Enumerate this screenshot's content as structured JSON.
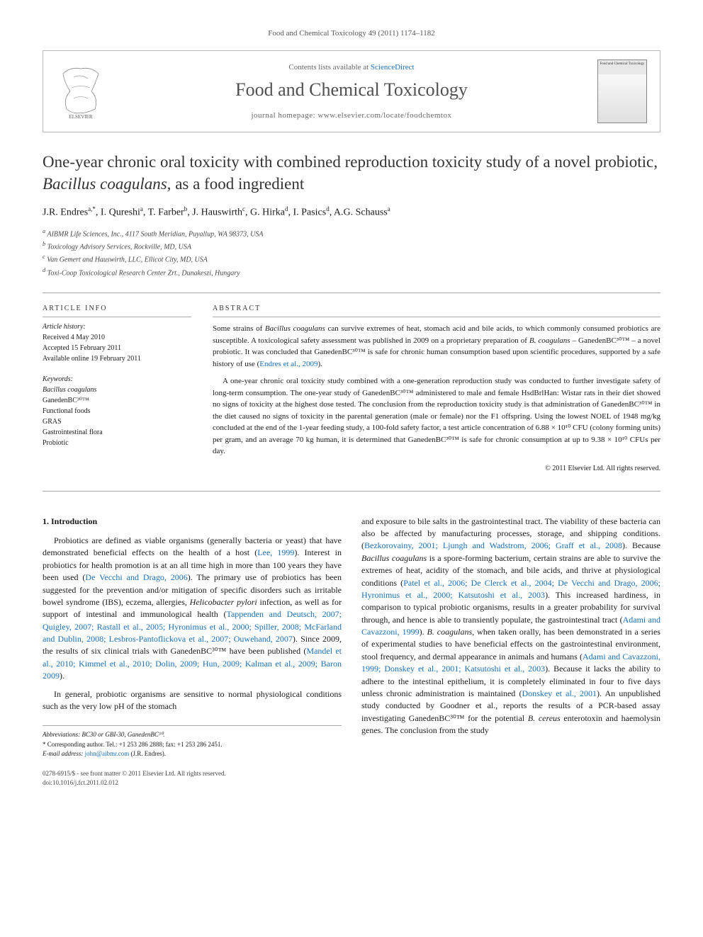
{
  "topline": "Food and Chemical Toxicology 49 (2011) 1174–1182",
  "header": {
    "contents": "Contents lists available at",
    "scidirect": "ScienceDirect",
    "journal": "Food and Chemical Toxicology",
    "homepage": "journal homepage: www.elsevier.com/locate/foodchemtox",
    "elsevier_label": "ELSEVIER",
    "cover_label": "Food and Chemical Toxicology"
  },
  "title_pre": "One-year chronic oral toxicity with combined reproduction toxicity study of a novel probiotic, ",
  "title_ital": "Bacillus coagulans,",
  "title_post": " as a food ingredient",
  "authors_html": "J.R. Endres<sup>a,*</sup>, I. Qureshi<sup>a</sup>, T. Farber<sup>b</sup>, J. Hauswirth<sup>c</sup>, G. Hirka<sup>d</sup>, I. Pasics<sup>d</sup>, A.G. Schauss<sup>a</sup>",
  "affiliations": [
    "a AIBMR Life Sciences, Inc., 4117 South Meridian, Puyallup, WA 98373, USA",
    "b Toxicology Advisory Services, Rockville, MD, USA",
    "c Van Gemert and Hauswirth, LLC, Ellicot City, MD, USA",
    "d Toxi-Coop Toxicological Research Center Zrt., Dunakeszi, Hungary"
  ],
  "article_info": {
    "head": "ARTICLE INFO",
    "history_head": "Article history:",
    "received": "Received 4 May 2010",
    "accepted": "Accepted 15 February 2011",
    "online": "Available online 19 February 2011",
    "keywords_head": "Keywords:",
    "keywords": [
      "Bacillus coagulans",
      "GanedenBC³⁰™",
      "Functional foods",
      "GRAS",
      "Gastrointestinal flora",
      "Probiotic"
    ]
  },
  "abstract": {
    "head": "ABSTRACT",
    "p1": "Some strains of Bacillus coagulans can survive extremes of heat, stomach acid and bile acids, to which commonly consumed probiotics are susceptible. A toxicological safety assessment was published in 2009 on a proprietary preparation of B. coagulans – GanedenBC³⁰™ – a novel probiotic. It was concluded that GanedenBC³⁰™ is safe for chronic human consumption based upon scientific procedures, supported by a safe history of use (Endres et al., 2009).",
    "p2": "A one-year chronic oral toxicity study combined with a one-generation reproduction study was conducted to further investigate safety of long-term consumption. The one-year study of GanedenBC³⁰™ administered to male and female HsdBrlHan: Wistar rats in their diet showed no signs of toxicity at the highest dose tested. The conclusion from the reproduction toxicity study is that administration of GanedenBC³⁰™ in the diet caused no signs of toxicity in the parental generation (male or female) nor the F1 offspring. Using the lowest NOEL of 1948 mg/kg concluded at the end of the 1-year feeding study, a 100-fold safety factor, a test article concentration of 6.88 × 10¹⁰ CFU (colony forming units) per gram, and an average 70 kg human, it is determined that GanedenBC³⁰™ is safe for chronic consumption at up to 9.38 × 10¹⁰ CFUs per day.",
    "copyright": "© 2011 Elsevier Ltd. All rights reserved."
  },
  "intro": {
    "head": "1. Introduction",
    "col1_p1": "Probiotics are defined as viable organisms (generally bacteria or yeast) that have demonstrated beneficial effects on the health of a host (Lee, 1999). Interest in probiotics for health promotion is at an all time high in more than 100 years they have been used (De Vecchi and Drago, 2006). The primary use of probiotics has been suggested for the prevention and/or mitigation of specific disorders such as irritable bowel syndrome (IBS), eczema, allergies, Helicobacter pylori infection, as well as for support of intestinal and immunological health (Tappenden and Deutsch, 2007; Quigley, 2007; Rastall et al., 2005; Hyronimus et al., 2000; Spiller, 2008; McFarland and Dublin, 2008; Lesbros-Pantoflickova et al., 2007; Ouwehand, 2007). Since 2009, the results of six clinical trials with GanedenBC³⁰™ have been published (Mandel et al., 2010; Kimmel et al., 2010; Dolin, 2009; Hun, 2009; Kalman et al., 2009; Baron 2009).",
    "col1_p2": "In general, probiotic organisms are sensitive to normal physiological conditions such as the very low pH of the stomach",
    "col2_p1": "and exposure to bile salts in the gastrointestinal tract. The viability of these bacteria can also be affected by manufacturing processes, storage, and shipping conditions. (Bezkorovainy, 2001; Ljungh and Wadstrom, 2006; Graff et al., 2008). Because Bacillus coagulans is a spore-forming bacterium, certain strains are able to survive the extremes of heat, acidity of the stomach, and bile acids, and thrive at physiological conditions (Patel et al., 2006; De Clerck et al., 2004; De Vecchi and Drago, 2006; Hyronimus et al., 2000; Katsutoshi et al., 2003). This increased hardiness, in comparison to typical probiotic organisms, results in a greater probability for survival through, and hence is able to transiently populate, the gastrointestinal tract (Adami and Cavazzoni, 1999). B. coagulans, when taken orally, has been demonstrated in a series of experimental studies to have beneficial effects on the gastrointestinal environment, stool frequency, and dermal appearance in animals and humans (Adami and Cavazzoni, 1999; Donskey et al., 2001; Katsutoshi et al., 2003). Because it lacks the ability to adhere to the intestinal epithelium, it is completely eliminated in four to five days unless chronic administration is maintained (Donskey et al., 2001). An unpublished study conducted by Goodner et al., reports the results of a PCR-based assay investigating GanedenBC³⁰™ for the potential B. cereus enterotoxin and haemolysin genes. The conclusion from the study"
  },
  "footnotes": {
    "abbrev": "Abbreviations: BC30 or GBI-30, GanedenBC³⁰.",
    "corresp": "* Corresponding author. Tel.: +1 253 286 2888; fax: +1 253 286 2451.",
    "email_label": "E-mail address:",
    "email": "john@aibmr.com",
    "email_who": "(J.R. Endres)."
  },
  "bottom": {
    "line1": "0278-6915/$ - see front matter © 2011 Elsevier Ltd. All rights reserved.",
    "line2": "doi:10.1016/j.fct.2011.02.012"
  },
  "colors": {
    "link": "#1a6eb5",
    "rule": "#aaaaaa",
    "text": "#1a1a1a",
    "muted": "#555555"
  }
}
